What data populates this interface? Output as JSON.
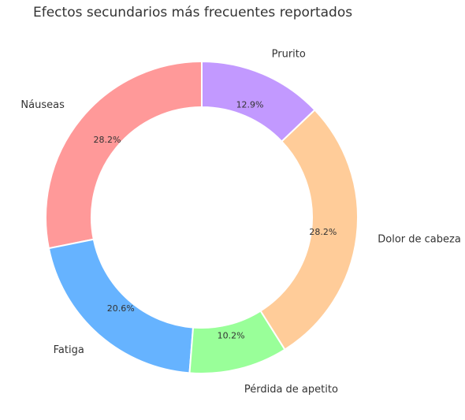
{
  "chart_data": {
    "type": "pie",
    "style": "donut",
    "title": "Efectos secundarios más frecuentes reportados",
    "start_angle_deg": 90,
    "direction": "counterclockwise",
    "slices": [
      {
        "label": "Náuseas",
        "value": 28.2,
        "value_label": "28.2%",
        "color": "#ff9999"
      },
      {
        "label": "Fatiga",
        "value": 20.6,
        "value_label": "20.6%",
        "color": "#66b3ff"
      },
      {
        "label": "Pérdida de apetito",
        "value": 10.2,
        "value_label": "10.2%",
        "color": "#99ff99"
      },
      {
        "label": "Dolor de cabeza",
        "value": 28.2,
        "value_label": "28.2%",
        "color": "#ffcc99"
      },
      {
        "label": "Prurito",
        "value": 12.9,
        "value_label": "12.9%",
        "color": "#c299ff"
      }
    ]
  }
}
